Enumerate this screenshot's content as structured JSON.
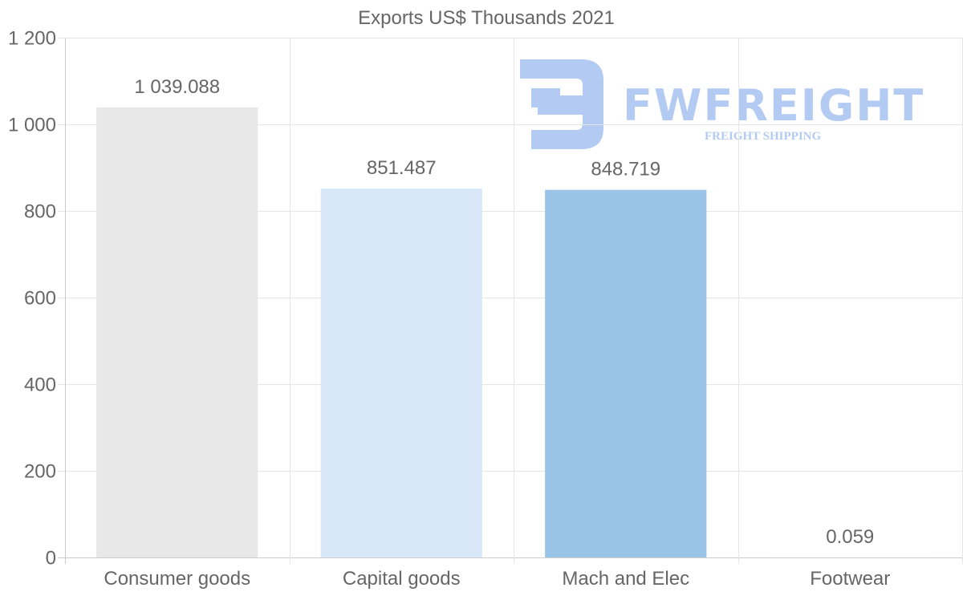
{
  "chart_data": {
    "type": "bar",
    "title": "Exports US$ Thousands 2021",
    "categories": [
      "Consumer goods",
      "Capital goods",
      "Mach and Elec",
      "Footwear"
    ],
    "values": [
      1039.088,
      851.487,
      848.719,
      0.059
    ],
    "value_labels": [
      "1 039.088",
      "851.487",
      "848.719",
      "0.059"
    ],
    "bar_colors": [
      "#e8e8e8",
      "#d7e7f8",
      "#9ac4e7",
      "#9ac4e7"
    ],
    "ylim": [
      0,
      1200
    ],
    "yticks": [
      0,
      200,
      400,
      600,
      800,
      1000,
      1200
    ],
    "ytick_labels": [
      "0",
      "200",
      "400",
      "600",
      "800",
      "1 000",
      "1 200"
    ],
    "xlabel": "",
    "ylabel": "",
    "grid": true
  },
  "watermark": {
    "name": "FWFREIGHT",
    "subtitle": "FREIGHT SHIPPING",
    "color": "#b3cbf3"
  }
}
